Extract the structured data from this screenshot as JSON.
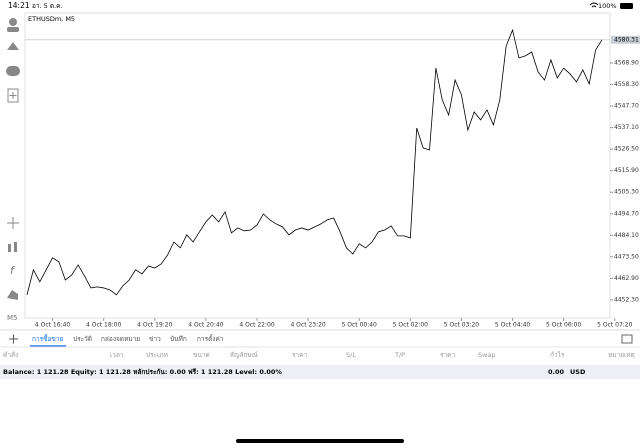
{
  "status_bar": {
    "time": "14:21",
    "date": "อา. 5 ต.ค.",
    "battery": "100%"
  },
  "chart_data": {
    "type": "line",
    "title": "ETHUSDm, M5",
    "color": "#000000",
    "values": [
      4454.8,
      4467.1,
      4461.2,
      4467.1,
      4473.0,
      4471.0,
      4462.1,
      4464.6,
      4469.5,
      4464.1,
      4458.2,
      4458.7,
      4458.2,
      4457.2,
      4454.8,
      4459.2,
      4462.1,
      4467.1,
      4465.1,
      4469.0,
      4468.0,
      4470.0,
      4474.4,
      4480.8,
      4477.9,
      4484.3,
      4480.8,
      4485.8,
      4490.7,
      4494.1,
      4490.7,
      4495.6,
      4485.3,
      4487.7,
      4486.3,
      4486.7,
      4489.2,
      4494.6,
      4491.7,
      4489.7,
      4488.2,
      4484.3,
      4486.7,
      4487.7,
      4486.7,
      4488.2,
      4489.7,
      4491.7,
      4492.6,
      4485.8,
      4477.9,
      4474.9,
      4479.9,
      4477.9,
      4480.8,
      4485.8,
      4486.7,
      4488.7,
      4483.8,
      4483.8,
      4482.8,
      4536.9,
      4527.1,
      4526.1,
      4566.4,
      4550.7,
      4543.3,
      4560.5,
      4553.2,
      4535.9,
      4544.8,
      4540.9,
      4545.8,
      4538.4,
      4550.7,
      4577.3,
      4585.1,
      4571.4,
      4572.4,
      4574.3,
      4564.5,
      4560.5,
      4570.4,
      4561.5,
      4566.4,
      4563.5,
      4559.6,
      4565.5,
      4558.6,
      4575.3,
      4580.3
    ],
    "ylim": [
      4443.4,
      4593.5
    ],
    "yticks": [
      {
        "value": 4452.3,
        "label": "4452.30"
      },
      {
        "value": 4462.9,
        "label": "4462.90"
      },
      {
        "value": 4473.5,
        "label": "4473.50"
      },
      {
        "value": 4484.1,
        "label": "4484.10"
      },
      {
        "value": 4494.7,
        "label": "4494.70"
      },
      {
        "value": 4505.3,
        "label": "4505.30"
      },
      {
        "value": 4515.9,
        "label": "4515.90"
      },
      {
        "value": 4526.5,
        "label": "4526.50"
      },
      {
        "value": 4537.1,
        "label": "4537.10"
      },
      {
        "value": 4547.7,
        "label": "4547.70"
      },
      {
        "value": 4558.3,
        "label": "4558.30"
      },
      {
        "value": 4568.9,
        "label": "4568.90"
      }
    ],
    "price_line": {
      "value": 4580.31,
      "label": "4580.31"
    },
    "xlim": [
      0,
      90
    ],
    "xticks": [
      {
        "value": 4,
        "label": "4 Oct 16:40"
      },
      {
        "value": 12,
        "label": "4 Oct 18:00"
      },
      {
        "value": 20,
        "label": "4 Oct 19:20"
      },
      {
        "value": 28,
        "label": "4 Oct 20:40"
      },
      {
        "value": 36,
        "label": "4 Oct 22:00"
      },
      {
        "value": 44,
        "label": "4 Oct 23:20"
      },
      {
        "value": 52,
        "label": "5 Oct 00:40"
      },
      {
        "value": 60,
        "label": "5 Oct 02:00"
      },
      {
        "value": 68,
        "label": "5 Oct 03:20"
      },
      {
        "value": 76,
        "label": "5 Oct 04:40"
      },
      {
        "value": 84,
        "label": "5 Oct 06:00"
      },
      {
        "value": 92,
        "label": "5 Oct 07:20"
      }
    ],
    "grid": false
  },
  "tabs": [
    "การซื้อขาย",
    "ประวัติ",
    "กล่องจดหมาย",
    "ข่าว",
    "บันทึก",
    "การตั้งค่า"
  ],
  "table": {
    "columns": [
      "คำสั่ง",
      "เวลา",
      "ประเภท",
      "ขนาด",
      "สัญลักษณ์",
      "ราคา",
      "S/L",
      "T/P",
      "ราคา",
      "Swap",
      "กำไร",
      "หมายเหตุ"
    ],
    "balance": "Balance: 1 121.28 Equity: 1 121.28 หลักประกัน: 0.00 ฟรี: 1 121.28 Level: 0.00%",
    "profit": "0.00",
    "currency": "USD"
  }
}
